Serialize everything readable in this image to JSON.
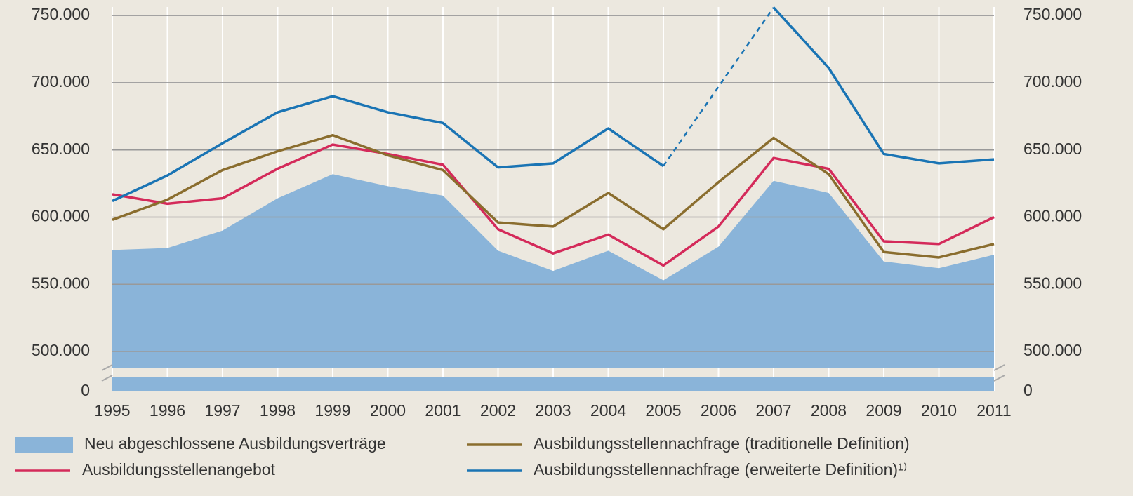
{
  "chart_data": {
    "type": "line",
    "categories": [
      "1995",
      "1996",
      "1997",
      "1998",
      "1999",
      "2000",
      "2001",
      "2002",
      "2003",
      "2004",
      "2005",
      "2006",
      "2007",
      "2008",
      "2009",
      "2010",
      "2011"
    ],
    "area": {
      "name": "Neu abgeschlossene Ausbildungsverträge",
      "color": "#8ab4d9",
      "values": [
        575500,
        577000,
        590000,
        614000,
        632000,
        623000,
        616000,
        575000,
        560000,
        575000,
        553000,
        578000,
        627000,
        618000,
        567000,
        562000,
        572000
      ]
    },
    "series": [
      {
        "name": "Ausbildungsstellenangebot",
        "color": "#d42a5a",
        "values": [
          617000,
          610000,
          614000,
          636000,
          654000,
          647000,
          639000,
          591000,
          573000,
          587000,
          564000,
          593000,
          644000,
          636000,
          582000,
          580000,
          600000
        ]
      },
      {
        "name": "Ausbildungsstellennachfrage (traditionelle Definition)",
        "color": "#8a6d2e",
        "values": [
          598000,
          613000,
          635000,
          649000,
          661000,
          646000,
          635000,
          596000,
          593000,
          618000,
          591000,
          626000,
          659000,
          632000,
          574000,
          570000,
          580000
        ]
      },
      {
        "name": "Ausbildungsstellennachfrage (erweiterte Definition)¹⁾",
        "color": "#1a74b4",
        "values": [
          612000,
          631000,
          655000,
          678000,
          690000,
          678000,
          670000,
          637000,
          640000,
          666000,
          638000,
          null,
          756000,
          711000,
          647000,
          640000,
          643000
        ]
      }
    ],
    "ylim": [
      487500,
      760000
    ],
    "yticks": [
      0,
      {
        "value": 500000,
        "label": "500.000"
      },
      {
        "value": 550000,
        "label": "550.000"
      },
      {
        "value": 600000,
        "label": "600.000"
      },
      {
        "value": 650000,
        "label": "650.000"
      },
      {
        "value": 700000,
        "label": "700.000"
      },
      {
        "value": 750000,
        "label": "750.000"
      }
    ],
    "axis_break": true,
    "grid": true
  }
}
